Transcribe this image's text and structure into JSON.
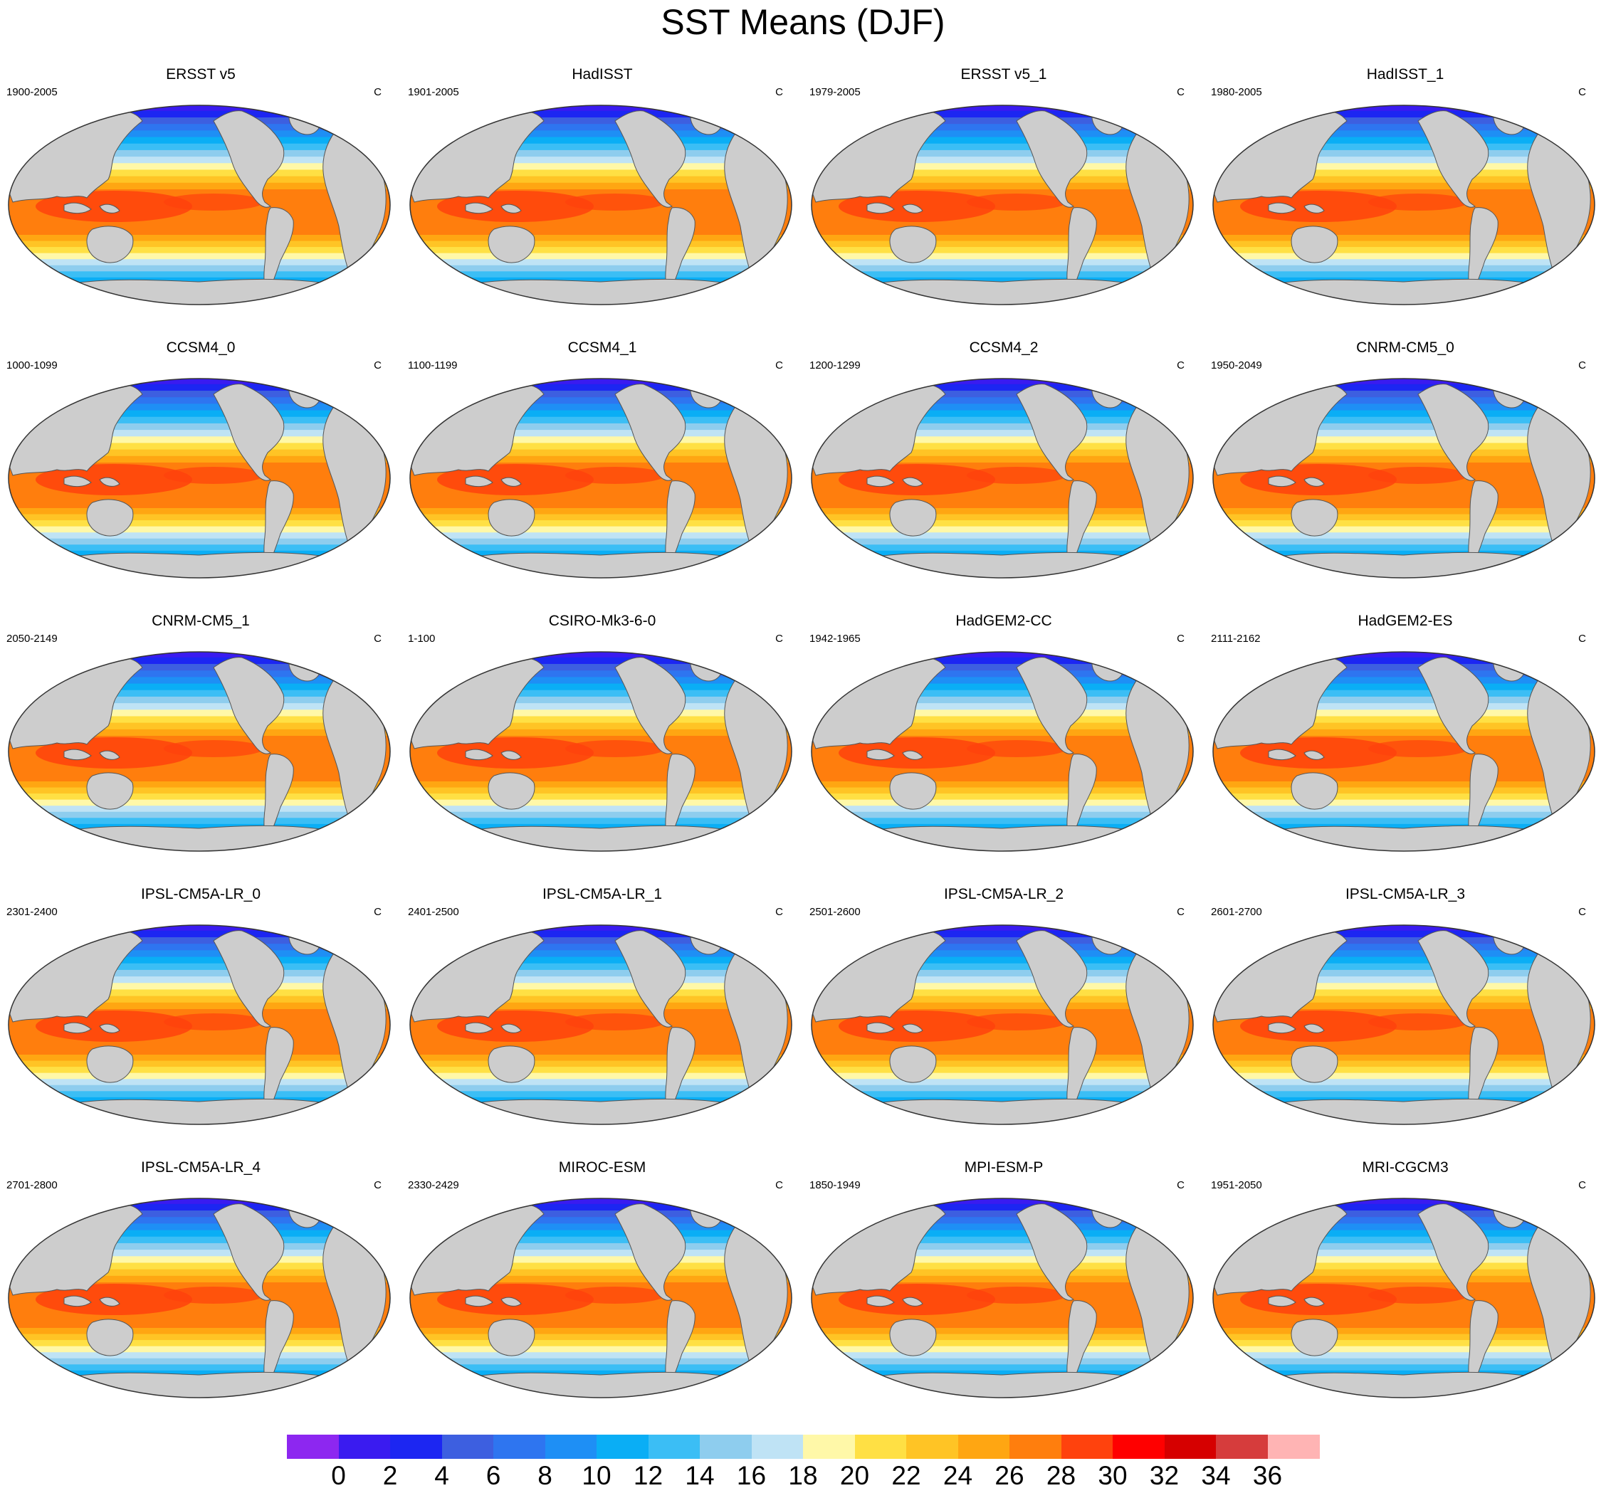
{
  "title": "SST Means (DJF)",
  "colormap": {
    "colors": [
      "#8d27f0",
      "#3a1bf0",
      "#1c26f2",
      "#3d5fe0",
      "#2e75f0",
      "#1e8ff5",
      "#0aaef5",
      "#3bbef5",
      "#8ecdee",
      "#bfe3f5",
      "#fff8a8",
      "#ffe044",
      "#ffc425",
      "#ffa612",
      "#ff7e0d",
      "#ff420d",
      "#ff0000",
      "#d60000",
      "#d63c3c",
      "#ffb4b4"
    ],
    "tick_labels": [
      "0",
      "2",
      "4",
      "6",
      "8",
      "10",
      "12",
      "14",
      "16",
      "18",
      "20",
      "22",
      "24",
      "26",
      "28",
      "30",
      "32",
      "34",
      "36"
    ]
  },
  "panels": [
    {
      "name": "ERSST v5",
      "period": "1900-2005",
      "units": "C"
    },
    {
      "name": "HadISST",
      "period": "1901-2005",
      "units": "C"
    },
    {
      "name": "ERSST v5_1",
      "period": "1979-2005",
      "units": "C"
    },
    {
      "name": "HadISST_1",
      "period": "1980-2005",
      "units": "C"
    },
    {
      "name": "CCSM4_0",
      "period": "1000-1099",
      "units": "C"
    },
    {
      "name": "CCSM4_1",
      "period": "1100-1199",
      "units": "C"
    },
    {
      "name": "CCSM4_2",
      "period": "1200-1299",
      "units": "C"
    },
    {
      "name": "CNRM-CM5_0",
      "period": "1950-2049",
      "units": "C"
    },
    {
      "name": "CNRM-CM5_1",
      "period": "2050-2149",
      "units": "C"
    },
    {
      "name": "CSIRO-Mk3-6-0",
      "period": "1-100",
      "units": "C"
    },
    {
      "name": "HadGEM2-CC",
      "period": "1942-1965",
      "units": "C"
    },
    {
      "name": "HadGEM2-ES",
      "period": "2111-2162",
      "units": "C"
    },
    {
      "name": "IPSL-CM5A-LR_0",
      "period": "2301-2400",
      "units": "C"
    },
    {
      "name": "IPSL-CM5A-LR_1",
      "period": "2401-2500",
      "units": "C"
    },
    {
      "name": "IPSL-CM5A-LR_2",
      "period": "2501-2600",
      "units": "C"
    },
    {
      "name": "IPSL-CM5A-LR_3",
      "period": "2601-2700",
      "units": "C"
    },
    {
      "name": "IPSL-CM5A-LR_4",
      "period": "2701-2800",
      "units": "C"
    },
    {
      "name": "MIROC-ESM",
      "period": "2330-2429",
      "units": "C"
    },
    {
      "name": "MPI-ESM-P",
      "period": "1850-1949",
      "units": "C"
    },
    {
      "name": "MRI-CGCM3",
      "period": "1951-2050",
      "units": "C"
    }
  ]
}
